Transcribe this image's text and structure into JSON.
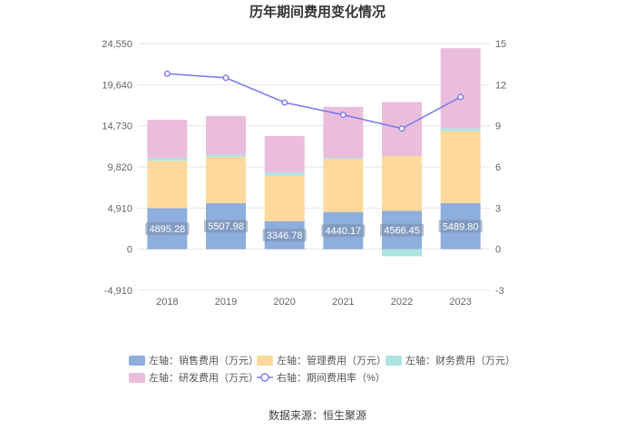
{
  "chart_data": {
    "type": "bar",
    "stacked": true,
    "title": "历年期间费用变化情况",
    "categories": [
      "2018",
      "2019",
      "2020",
      "2021",
      "2022",
      "2023"
    ],
    "left_axis": {
      "ticks": [
        -4910,
        0,
        4910,
        9820,
        14730,
        19640,
        24550
      ],
      "tick_labels": [
        "-4,910",
        "0",
        "4,910",
        "9,820",
        "14,730",
        "19,640",
        "24,550"
      ],
      "ylim": [
        -4910,
        24550
      ]
    },
    "right_axis": {
      "ticks": [
        -3,
        0,
        3,
        6,
        9,
        12,
        15
      ],
      "tick_labels": [
        "-3",
        "0",
        "3",
        "6",
        "9",
        "12",
        "15"
      ],
      "ylim": [
        -3,
        15
      ]
    },
    "series": [
      {
        "name": "左轴：销售费用（万元）",
        "color": "#8eaedd",
        "axis": "left",
        "values": [
          4895.28,
          5507.98,
          3346.78,
          4440.17,
          4566.45,
          5489.8
        ],
        "data_labels": [
          "4895.28",
          "5507.98",
          "3346.78",
          "4440.17",
          "4566.45",
          "5489.80"
        ]
      },
      {
        "name": "左轴：管理费用（万元）",
        "color": "#fdd99b",
        "axis": "left",
        "values": [
          5650,
          5500,
          5400,
          6300,
          6550,
          8600
        ]
      },
      {
        "name": "左轴：财务费用（万元）",
        "color": "#aee3e3",
        "axis": "left",
        "values": [
          350,
          300,
          400,
          150,
          -850,
          350
        ]
      },
      {
        "name": "左轴：研发费用（万元）",
        "color": "#ebbddc",
        "axis": "left",
        "values": [
          4550,
          4600,
          4350,
          6100,
          6450,
          9550
        ]
      },
      {
        "name": "右轴：期间费用率（%）",
        "color": "#7b7cec",
        "axis": "right",
        "type": "line",
        "values": [
          12.8,
          12.5,
          10.7,
          9.8,
          8.8,
          11.1
        ]
      }
    ],
    "source_label": "数据来源：恒生聚源"
  }
}
